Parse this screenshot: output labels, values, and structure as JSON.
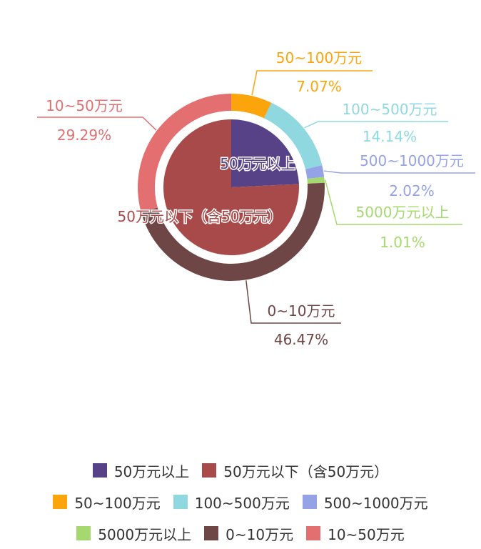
{
  "colors": {
    "above50": "#574187",
    "below50": "#a84a49",
    "r50_100": "#fca40b",
    "r100_500": "#8fd8df",
    "r500_1000": "#96a2e6",
    "r5000plus": "#a5d86f",
    "r0_10": "#6d4645",
    "r10_50": "#e36f70"
  },
  "chart_data": {
    "type": "pie",
    "inner": {
      "note_kind": "pie",
      "slices": [
        {
          "key": "above50",
          "name": "50万元以上",
          "value": 24.24
        },
        {
          "key": "below50",
          "name": "50万元以下（含50万元）",
          "value": 75.76
        }
      ]
    },
    "outer": {
      "note_kind": "donut",
      "slices": [
        {
          "key": "r50_100",
          "name": "50~100万元",
          "value": 7.07,
          "percent": "7.07%"
        },
        {
          "key": "r100_500",
          "name": "100~500万元",
          "value": 14.14,
          "percent": "14.14%"
        },
        {
          "key": "r500_1000",
          "name": "500~1000万元",
          "value": 2.02,
          "percent": "2.02%"
        },
        {
          "key": "r5000plus",
          "name": "5000万元以上",
          "value": 1.01,
          "percent": "1.01%"
        },
        {
          "key": "r0_10",
          "name": "0~10万元",
          "value": 46.47,
          "percent": "46.47%"
        },
        {
          "key": "r10_50",
          "name": "10~50万元",
          "value": 29.29,
          "percent": "29.29%"
        }
      ]
    }
  },
  "legend": {
    "rows": [
      [
        {
          "key": "above50",
          "label": "50万元以上"
        },
        {
          "key": "below50",
          "label": "50万元以下（含50万元）"
        }
      ],
      [
        {
          "key": "r50_100",
          "label": "50~100万元"
        },
        {
          "key": "r100_500",
          "label": "100~500万元"
        },
        {
          "key": "r500_1000",
          "label": "500~1000万元"
        }
      ],
      [
        {
          "key": "r5000plus",
          "label": "5000万元以上"
        },
        {
          "key": "r0_10",
          "label": "0~10万元"
        },
        {
          "key": "r10_50",
          "label": "10~50万元"
        }
      ]
    ]
  }
}
